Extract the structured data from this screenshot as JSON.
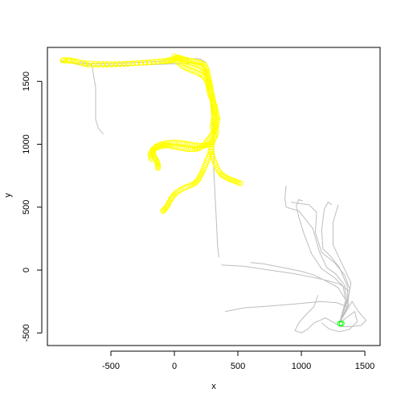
{
  "chart_data": {
    "type": "scatter",
    "title": "",
    "xlabel": "x",
    "ylabel": "y",
    "xlim": [
      -1000,
      1620
    ],
    "ylim": [
      -600,
      1770
    ],
    "x_ticks": [
      -500,
      0,
      500,
      1000,
      1500
    ],
    "y_ticks": [
      -500,
      0,
      500,
      1000,
      1500
    ],
    "x_tick_labels": [
      "-500",
      "0",
      "500",
      "1000",
      "1500"
    ],
    "y_tick_labels": [
      "-500",
      "0",
      "500",
      "1000",
      "1500"
    ],
    "grid": false,
    "legend": "none",
    "colors": {
      "track": "#bebebe",
      "points": "#ffff00",
      "highlight": "#00ff00",
      "axis": "#000000"
    },
    "track_paths": [
      [
        [
          1300,
          -420
        ],
        [
          1360,
          -300
        ],
        [
          1380,
          -150
        ],
        [
          1340,
          -40
        ],
        [
          1260,
          60
        ],
        [
          1160,
          140
        ],
        [
          1110,
          300
        ],
        [
          1120,
          460
        ],
        [
          1060,
          520
        ],
        [
          980,
          530
        ],
        [
          920,
          540
        ]
      ],
      [
        [
          1300,
          -420
        ],
        [
          1370,
          -280
        ],
        [
          1360,
          -120
        ],
        [
          1300,
          20
        ],
        [
          1230,
          110
        ],
        [
          1170,
          170
        ],
        [
          1160,
          320
        ],
        [
          1180,
          480
        ],
        [
          1210,
          540
        ],
        [
          1240,
          520
        ]
      ],
      [
        [
          1300,
          -420
        ],
        [
          1350,
          -260
        ],
        [
          1330,
          -130
        ],
        [
          1260,
          -60
        ],
        [
          1160,
          10
        ],
        [
          1080,
          130
        ],
        [
          1020,
          290
        ],
        [
          980,
          420
        ],
        [
          960,
          510
        ],
        [
          980,
          560
        ],
        [
          1010,
          550
        ]
      ],
      [
        [
          1300,
          -420
        ],
        [
          1370,
          -220
        ],
        [
          1390,
          -100
        ],
        [
          1320,
          50
        ],
        [
          1250,
          200
        ],
        [
          1250,
          380
        ],
        [
          1290,
          520
        ]
      ],
      [
        [
          1300,
          -420
        ],
        [
          1360,
          -250
        ],
        [
          1340,
          -120
        ],
        [
          1270,
          -30
        ],
        [
          1200,
          20
        ],
        [
          1140,
          150
        ],
        [
          1090,
          330
        ],
        [
          980,
          470
        ],
        [
          880,
          500
        ],
        [
          870,
          570
        ],
        [
          880,
          670
        ]
      ],
      [
        [
          1300,
          -420
        ],
        [
          1350,
          -240
        ],
        [
          1290,
          -140
        ],
        [
          1200,
          -90
        ],
        [
          1100,
          -40
        ],
        [
          1000,
          -10
        ],
        [
          850,
          20
        ],
        [
          700,
          50
        ],
        [
          600,
          60
        ]
      ],
      [
        [
          1300,
          -420
        ],
        [
          1380,
          -170
        ],
        [
          1300,
          -110
        ],
        [
          1150,
          -70
        ],
        [
          950,
          -30
        ],
        [
          750,
          0
        ],
        [
          550,
          30
        ],
        [
          370,
          40
        ]
      ],
      [
        [
          1300,
          -420
        ],
        [
          1360,
          -290
        ],
        [
          1280,
          -260
        ],
        [
          1150,
          -250
        ],
        [
          950,
          -270
        ],
        [
          700,
          -290
        ],
        [
          550,
          -300
        ],
        [
          400,
          -330
        ]
      ],
      [
        [
          1300,
          -420
        ],
        [
          1400,
          -250
        ],
        [
          1450,
          -330
        ],
        [
          1510,
          -400
        ],
        [
          1470,
          -440
        ],
        [
          1380,
          -450
        ],
        [
          1310,
          -450
        ],
        [
          1260,
          -420
        ],
        [
          1190,
          -380
        ],
        [
          1100,
          -420
        ],
        [
          1050,
          -470
        ],
        [
          1000,
          -500
        ],
        [
          950,
          -480
        ],
        [
          980,
          -420
        ],
        [
          1040,
          -350
        ],
        [
          1100,
          -290
        ],
        [
          1130,
          -200
        ]
      ],
      [
        [
          1300,
          -420
        ],
        [
          1420,
          -330
        ],
        [
          1440,
          -410
        ],
        [
          1380,
          -470
        ],
        [
          1300,
          -490
        ],
        [
          1220,
          -470
        ],
        [
          1160,
          -420
        ]
      ],
      [
        [
          -900,
          1660
        ],
        [
          -700,
          1640
        ],
        [
          -500,
          1640
        ],
        [
          -300,
          1650
        ],
        [
          -100,
          1660
        ],
        [
          50,
          1680
        ],
        [
          200,
          1680
        ],
        [
          250,
          1650
        ]
      ],
      [
        [
          -900,
          1665
        ],
        [
          -720,
          1625
        ],
        [
          -500,
          1625
        ],
        [
          -250,
          1630
        ],
        [
          0,
          1640
        ],
        [
          150,
          1645
        ],
        [
          240,
          1620
        ]
      ],
      [
        [
          -750,
          1660
        ],
        [
          -650,
          1630
        ],
        [
          -620,
          1450
        ],
        [
          -620,
          1200
        ],
        [
          -600,
          1130
        ],
        [
          -560,
          1080
        ]
      ],
      [
        [
          250,
          1600
        ],
        [
          280,
          1400
        ],
        [
          300,
          1200
        ],
        [
          310,
          1000
        ],
        [
          310,
          800
        ],
        [
          320,
          600
        ],
        [
          330,
          400
        ],
        [
          340,
          200
        ],
        [
          350,
          100
        ]
      ]
    ],
    "point_tracks": [
      [
        [
          -880,
          1665
        ],
        [
          -800,
          1662
        ],
        [
          -700,
          1645
        ],
        [
          -600,
          1640
        ],
        [
          -500,
          1638
        ],
        [
          -400,
          1640
        ],
        [
          -300,
          1645
        ],
        [
          -200,
          1650
        ],
        [
          -100,
          1658
        ],
        [
          -40,
          1662
        ],
        [
          0,
          1670
        ],
        [
          30,
          1690
        ],
        [
          60,
          1680
        ],
        [
          100,
          1670
        ],
        [
          150,
          1660
        ],
        [
          200,
          1650
        ],
        [
          240,
          1630
        ],
        [
          260,
          1580
        ],
        [
          270,
          1520
        ],
        [
          280,
          1480
        ],
        [
          290,
          1420
        ],
        [
          300,
          1360
        ],
        [
          305,
          1300
        ],
        [
          310,
          1240
        ],
        [
          320,
          1180
        ],
        [
          330,
          1110
        ],
        [
          320,
          1060
        ],
        [
          300,
          1020
        ],
        [
          280,
          1000
        ],
        [
          240,
          990
        ],
        [
          180,
          990
        ],
        [
          120,
          1000
        ],
        [
          60,
          1010
        ],
        [
          0,
          1015
        ],
        [
          -60,
          1010
        ],
        [
          -100,
          1000
        ],
        [
          -140,
          985
        ],
        [
          -160,
          960
        ],
        [
          -170,
          930
        ],
        [
          -160,
          900
        ],
        [
          -140,
          870
        ],
        [
          -130,
          840
        ],
        [
          -130,
          810
        ]
      ],
      [
        [
          300,
          1020
        ],
        [
          290,
          960
        ],
        [
          270,
          900
        ],
        [
          250,
          850
        ],
        [
          230,
          800
        ],
        [
          210,
          760
        ],
        [
          190,
          720
        ],
        [
          160,
          690
        ],
        [
          120,
          670
        ],
        [
          70,
          650
        ],
        [
          20,
          620
        ],
        [
          -10,
          590
        ],
        [
          -30,
          560
        ],
        [
          -50,
          520
        ],
        [
          -70,
          490
        ],
        [
          -90,
          470
        ]
      ],
      [
        [
          290,
          960
        ],
        [
          300,
          900
        ],
        [
          320,
          850
        ],
        [
          340,
          800
        ],
        [
          370,
          760
        ],
        [
          400,
          740
        ],
        [
          440,
          720
        ],
        [
          480,
          705
        ],
        [
          520,
          690
        ]
      ],
      [
        [
          0,
          1700
        ],
        [
          30,
          1650
        ],
        [
          80,
          1610
        ],
        [
          130,
          1590
        ],
        [
          180,
          1570
        ],
        [
          230,
          1540
        ],
        [
          260,
          1500
        ],
        [
          270,
          1450
        ],
        [
          280,
          1400
        ],
        [
          300,
          1350
        ],
        [
          320,
          1300
        ],
        [
          330,
          1240
        ],
        [
          340,
          1200
        ],
        [
          330,
          1150
        ],
        [
          320,
          1120
        ],
        [
          300,
          1080
        ],
        [
          270,
          1040
        ],
        [
          240,
          1000
        ],
        [
          200,
          970
        ],
        [
          160,
          960
        ],
        [
          110,
          960
        ],
        [
          60,
          970
        ],
        [
          0,
          980
        ],
        [
          -40,
          990
        ],
        [
          -80,
          990
        ],
        [
          -120,
          980
        ],
        [
          -170,
          960
        ],
        [
          -190,
          920
        ],
        [
          -180,
          880
        ]
      ],
      [
        [
          -870,
          1670
        ],
        [
          -820,
          1668
        ],
        [
          -760,
          1655
        ],
        [
          -680,
          1630
        ],
        [
          -560,
          1630
        ],
        [
          -460,
          1635
        ],
        [
          -360,
          1640
        ],
        [
          -260,
          1648
        ],
        [
          -160,
          1655
        ],
        [
          -60,
          1665
        ],
        [
          20,
          1690
        ],
        [
          80,
          1660
        ],
        [
          140,
          1640
        ],
        [
          200,
          1620
        ],
        [
          240,
          1590
        ],
        [
          250,
          1560
        ],
        [
          270,
          1500
        ],
        [
          280,
          1440
        ],
        [
          300,
          1380
        ],
        [
          310,
          1320
        ],
        [
          320,
          1260
        ],
        [
          310,
          1200
        ],
        [
          300,
          1140
        ],
        [
          320,
          1080
        ]
      ]
    ],
    "highlight_point": [
      1305,
      -425
    ]
  }
}
